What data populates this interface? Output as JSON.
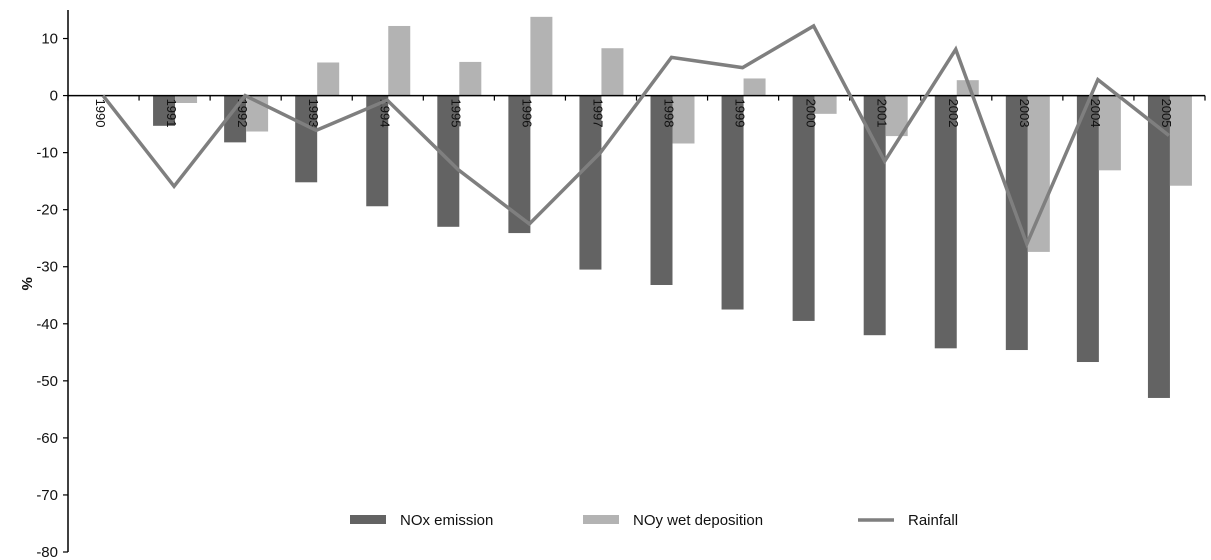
{
  "chart_data": {
    "type": "bar",
    "ylabel": "%",
    "xlabel": "",
    "title": "",
    "ylim": [
      -80,
      15
    ],
    "yticks": [
      10,
      0,
      -10,
      -20,
      -30,
      -40,
      -50,
      -60,
      -70,
      -80
    ],
    "categories": [
      "1990",
      "1991",
      "1992",
      "1993",
      "1994",
      "1995",
      "1996",
      "1997",
      "1998",
      "1999",
      "2000",
      "2001",
      "2002",
      "2003",
      "2004",
      "2005"
    ],
    "series": [
      {
        "name": "NOx emission",
        "kind": "bar",
        "color": "#636363",
        "values": [
          0,
          -5.3,
          -8.2,
          -15.2,
          -19.4,
          -23.0,
          -24.1,
          -30.5,
          -33.2,
          -37.5,
          -39.5,
          -42.0,
          -44.3,
          -44.6,
          -46.7,
          -53.0
        ]
      },
      {
        "name": "NOy wet deposition",
        "kind": "bar",
        "color": "#b3b3b3",
        "values": [
          0,
          -1.3,
          -6.3,
          5.8,
          12.2,
          5.9,
          13.8,
          8.3,
          -8.4,
          3.0,
          -3.2,
          -7.1,
          2.7,
          -27.4,
          -13.1,
          -15.8
        ]
      },
      {
        "name": "Rainfall",
        "kind": "line",
        "color": "#7f7f7f",
        "values": [
          0,
          -15.9,
          0.0,
          -6.1,
          -0.8,
          -13.0,
          -22.5,
          -10.0,
          6.7,
          4.9,
          12.2,
          -11.5,
          8.1,
          -26.0,
          2.8,
          -7.0
        ]
      }
    ],
    "legend": {
      "position": "bottom-center",
      "entries": [
        "NOx emission",
        "NOy wet deposition",
        "Rainfall"
      ]
    },
    "grid": false
  }
}
